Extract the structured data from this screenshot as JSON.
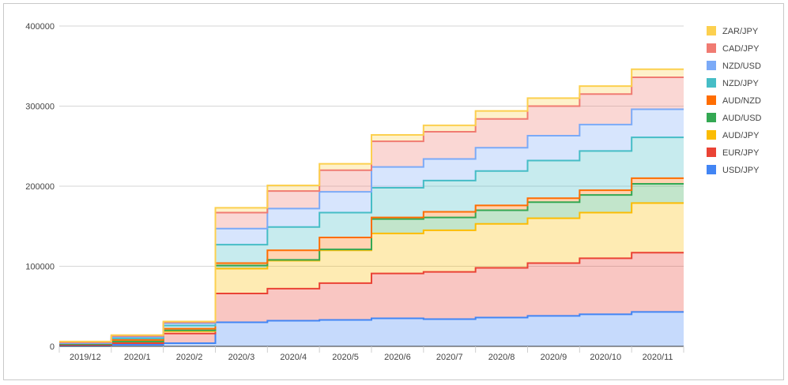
{
  "chart_data": {
    "type": "area",
    "stacked": true,
    "stepped": true,
    "title": "",
    "xlabel": "",
    "ylabel": "",
    "ylim": [
      0,
      400000
    ],
    "yticks": [
      0,
      100000,
      200000,
      300000,
      400000
    ],
    "ytick_labels": [
      "0",
      "100000",
      "200000",
      "300000",
      "400000"
    ],
    "grid": true,
    "legend_position": "right",
    "categories": [
      "2019/12",
      "2020/1",
      "2020/2",
      "2020/3",
      "2020/4",
      "2020/5",
      "2020/6",
      "2020/7",
      "2020/8",
      "2020/9",
      "2020/10",
      "2020/11"
    ],
    "series": [
      {
        "name": "USD/JPY",
        "color": "#4285f4",
        "values": [
          1000,
          2000,
          4000,
          30000,
          32000,
          33000,
          35000,
          34000,
          36000,
          38000,
          40000,
          43000
        ]
      },
      {
        "name": "EUR/JPY",
        "color": "#ea4335",
        "values": [
          1000,
          2000,
          12000,
          36000,
          40000,
          46000,
          56000,
          59000,
          62000,
          66000,
          70000,
          74000
        ]
      },
      {
        "name": "AUD/JPY",
        "color": "#fbbc04",
        "values": [
          1000,
          2000,
          3000,
          31000,
          35000,
          41000,
          50000,
          52000,
          55000,
          56000,
          57000,
          62000
        ]
      },
      {
        "name": "AUD/USD",
        "color": "#34a853",
        "values": [
          0,
          0,
          1000,
          4000,
          1000,
          1000,
          18000,
          16000,
          17000,
          20000,
          22000,
          24000
        ]
      },
      {
        "name": "AUD/NZD",
        "color": "#ff6d01",
        "values": [
          1000,
          2000,
          2000,
          3000,
          12000,
          15000,
          2000,
          7000,
          6000,
          5000,
          6000,
          7000
        ]
      },
      {
        "name": "NZD/JPY",
        "color": "#46bdc6",
        "values": [
          0,
          2000,
          4000,
          23000,
          29000,
          31000,
          37000,
          39000,
          43000,
          47000,
          49000,
          51000
        ]
      },
      {
        "name": "NZD/USD",
        "color": "#7baaf7",
        "values": [
          0,
          2000,
          3000,
          20000,
          23000,
          26000,
          26000,
          27000,
          29000,
          31000,
          33000,
          35000
        ]
      },
      {
        "name": "CAD/JPY",
        "color": "#f07b72",
        "values": [
          1000,
          1000,
          1000,
          20000,
          22000,
          27000,
          32000,
          34000,
          36000,
          37000,
          38000,
          40000
        ]
      },
      {
        "name": "ZAR/JPY",
        "color": "#fcd04f",
        "values": [
          1000,
          1000,
          1000,
          6000,
          7000,
          8000,
          8000,
          8000,
          10000,
          10000,
          10000,
          10000
        ]
      }
    ]
  }
}
